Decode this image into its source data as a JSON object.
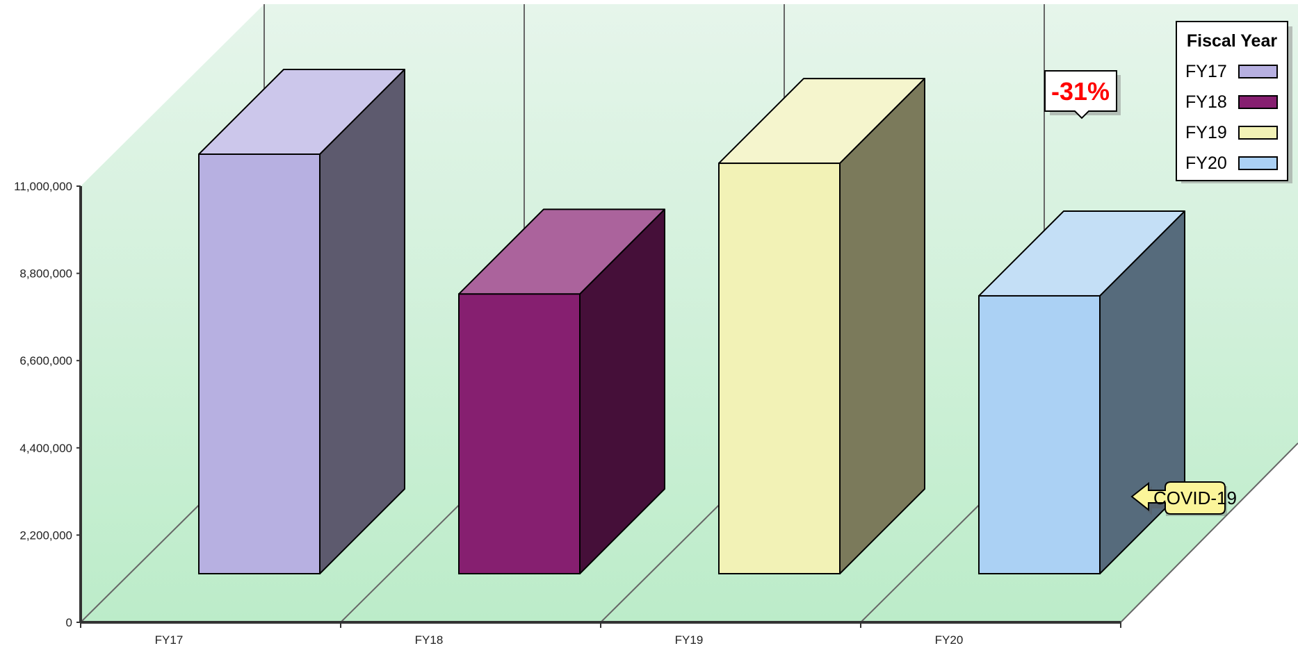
{
  "chart_data": {
    "type": "bar",
    "categories": [
      "FY17",
      "FY18",
      "FY19",
      "FY20"
    ],
    "values": [
      11550000,
      7700000,
      11300000,
      7650000
    ],
    "yticks": [
      0,
      2200000,
      4400000,
      6600000,
      8800000,
      11000000
    ],
    "ytick_labels": [
      "0",
      "2,200,000",
      "4,400,000",
      "6,600,000",
      "8,800,000",
      "11,000,000"
    ],
    "ylim": [
      0,
      11000000
    ],
    "legend": {
      "title": "Fiscal Year",
      "entries": [
        "FY17",
        "FY18",
        "FY19",
        "FY20"
      ],
      "position": "top-right"
    },
    "colors": {
      "front": [
        "#b7b0e1",
        "#861f70",
        "#f2f2b6",
        "#abd1f4"
      ],
      "top": [
        "#ccc7eb",
        "#ab639c",
        "#f5f5cd",
        "#c4dff6"
      ],
      "side": [
        "#5d5a6e",
        "#450f39",
        "#7b7a5b",
        "#566b7c"
      ]
    },
    "annotations": [
      {
        "text": "-31%",
        "target": "FY20",
        "style": "red bold callout"
      },
      {
        "text": "COVID-19",
        "target": "FY20",
        "style": "yellow arrow tag"
      }
    ],
    "background": {
      "gradient_top": "#e6f5eb",
      "gradient_bottom": "#bcecc9"
    }
  }
}
